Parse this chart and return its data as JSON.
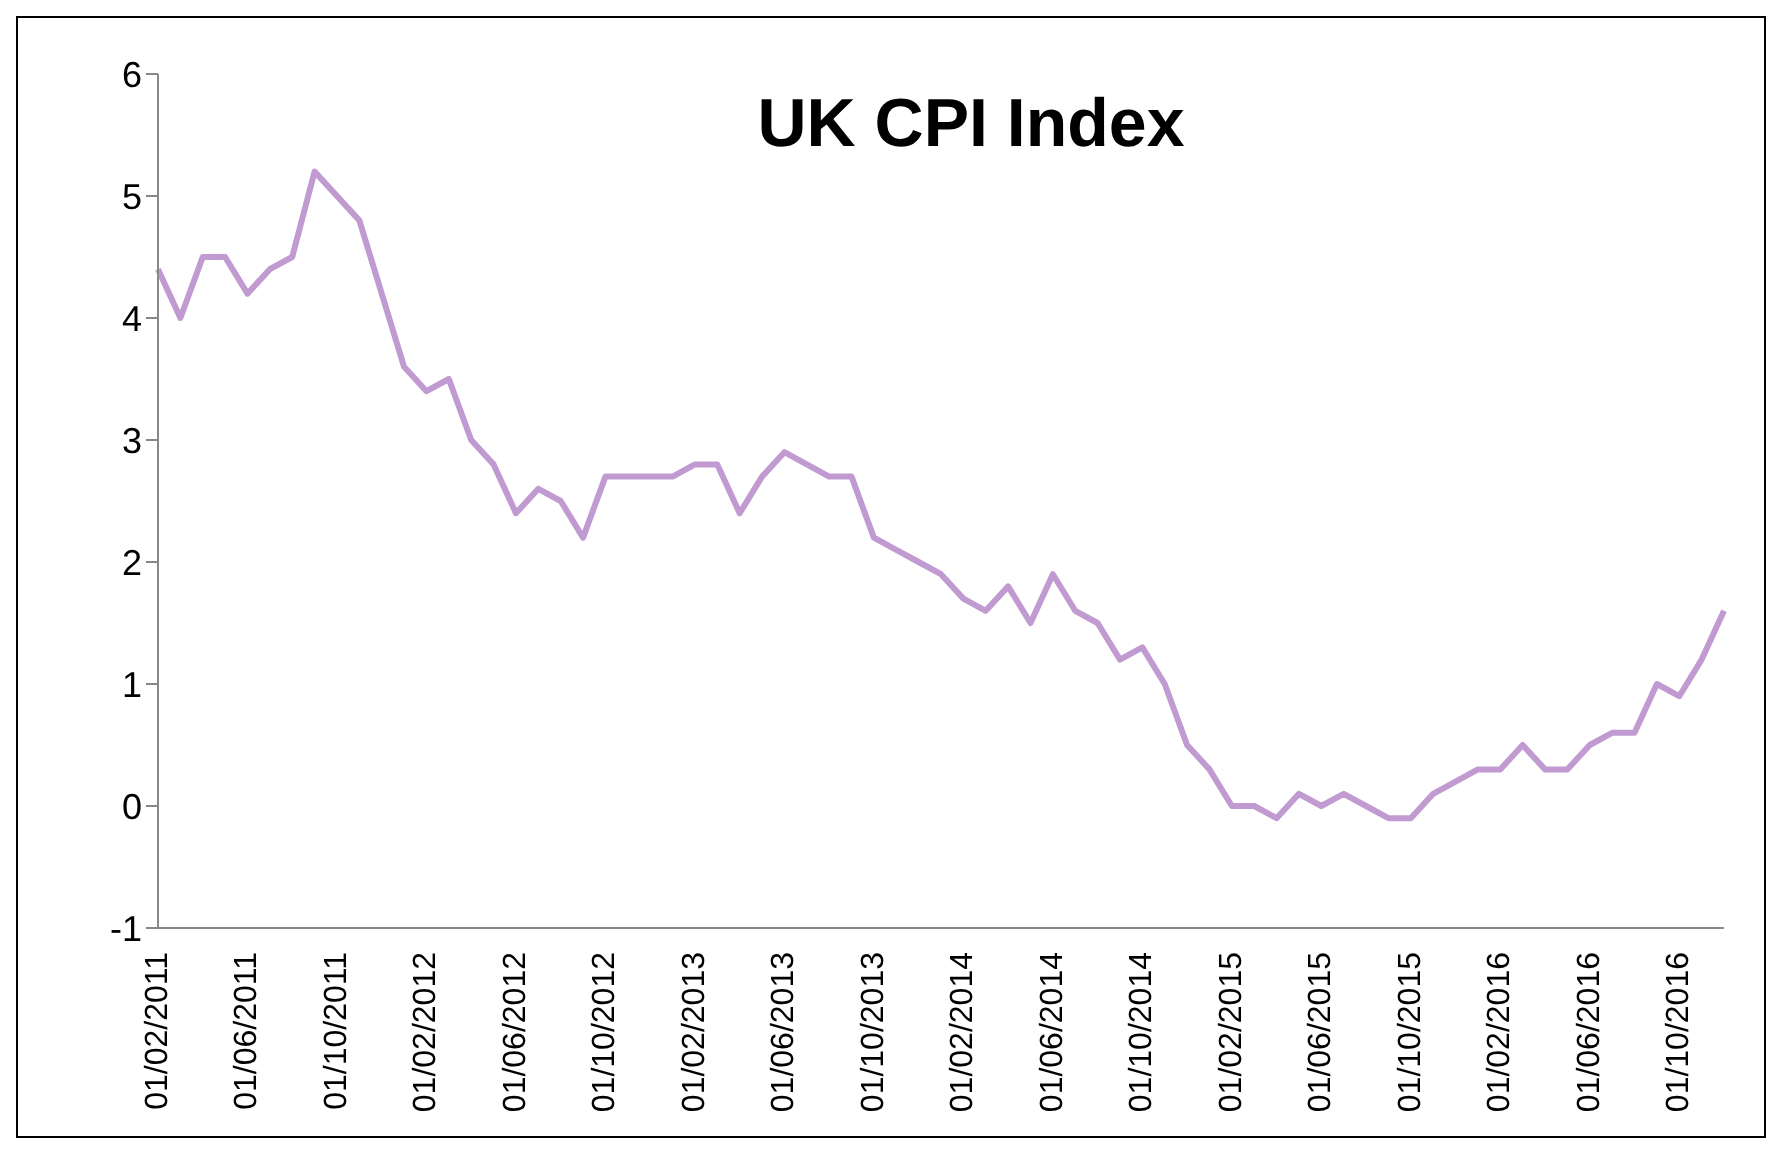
{
  "chart_data": {
    "type": "line",
    "title": "UK CPI Index",
    "categories": [
      "01/02/2011",
      null,
      null,
      null,
      "01/06/2011",
      null,
      null,
      null,
      "01/10/2011",
      null,
      null,
      null,
      "01/02/2012",
      null,
      null,
      null,
      "01/06/2012",
      null,
      null,
      null,
      "01/10/2012",
      null,
      null,
      null,
      "01/02/2013",
      null,
      null,
      null,
      "01/06/2013",
      null,
      null,
      null,
      "01/10/2013",
      null,
      null,
      null,
      "01/02/2014",
      null,
      null,
      null,
      "01/06/2014",
      null,
      null,
      null,
      "01/10/2014",
      null,
      null,
      null,
      "01/02/2015",
      null,
      null,
      null,
      "01/06/2015",
      null,
      null,
      null,
      "01/10/2015",
      null,
      null,
      null,
      "01/02/2016",
      null,
      null,
      null,
      "01/06/2016",
      null,
      null,
      null,
      "01/10/2016",
      null,
      null
    ],
    "series": [
      {
        "color": "#c09ad0",
        "values": [
          4.4,
          4.0,
          4.5,
          4.5,
          4.2,
          4.4,
          4.5,
          5.2,
          5.0,
          4.8,
          4.2,
          3.6,
          3.4,
          3.5,
          3.0,
          2.8,
          2.4,
          2.6,
          2.5,
          2.2,
          2.7,
          2.7,
          2.7,
          2.7,
          2.8,
          2.8,
          2.4,
          2.7,
          2.9,
          2.8,
          2.7,
          2.7,
          2.2,
          2.1,
          2.0,
          1.9,
          1.7,
          1.6,
          1.8,
          1.5,
          1.9,
          1.6,
          1.5,
          1.2,
          1.3,
          1.0,
          0.5,
          0.3,
          0.0,
          0.0,
          -0.1,
          0.1,
          0.0,
          0.1,
          0.0,
          -0.1,
          -0.1,
          0.1,
          0.2,
          0.3,
          0.3,
          0.5,
          0.3,
          0.3,
          0.5,
          0.6,
          0.6,
          1.0,
          0.9,
          1.2,
          1.6
        ]
      }
    ],
    "ylim": [
      -1,
      6
    ],
    "yticks": [
      -1,
      0,
      1,
      2,
      3,
      4,
      5,
      6
    ],
    "marker": "none",
    "line_style": "solid"
  }
}
